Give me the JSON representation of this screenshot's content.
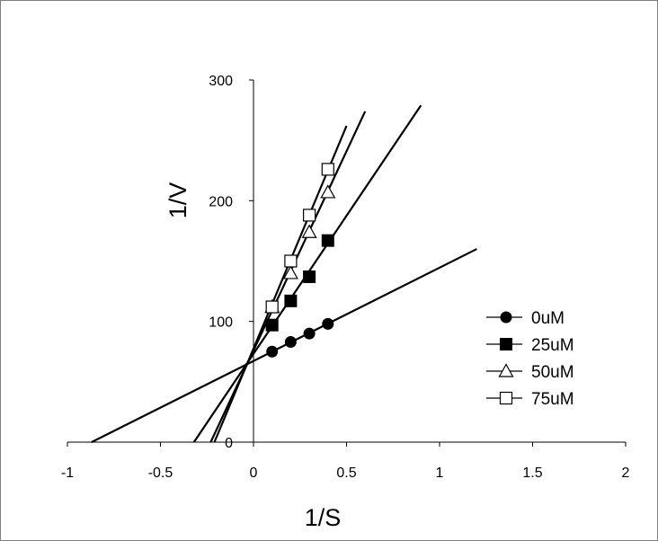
{
  "chart_data": {
    "type": "scatter",
    "title": "",
    "xlabel": "1/S",
    "ylabel": "1/V",
    "xlim": [
      -1,
      2
    ],
    "ylim": [
      0,
      300
    ],
    "xticks": [
      "-1",
      "-0.5",
      "0",
      "0.5",
      "1",
      "1.5",
      "2"
    ],
    "xtick_values": [
      -1,
      -0.5,
      0,
      0.5,
      1,
      1.5,
      2
    ],
    "yticks": [
      "0",
      "100",
      "200",
      "300"
    ],
    "ytick_values": [
      0,
      100,
      200,
      300
    ],
    "grid": false,
    "legend_position": "right",
    "series": [
      {
        "name": "0uM",
        "marker": "filled-circle",
        "x": [
          0.1,
          0.2,
          0.3,
          0.4
        ],
        "y": [
          75,
          83,
          90,
          98
        ],
        "trendline": {
          "x": [
            -0.87,
            1.2
          ],
          "y": [
            0,
            160
          ]
        }
      },
      {
        "name": "25uM",
        "marker": "filled-square",
        "x": [
          0.1,
          0.2,
          0.3,
          0.4
        ],
        "y": [
          97,
          117,
          137,
          167
        ],
        "trendline": {
          "x": [
            -0.32,
            0.9
          ],
          "y": [
            0,
            279
          ]
        }
      },
      {
        "name": "50uM",
        "marker": "open-triangle",
        "x": [
          0.1,
          0.2,
          0.3,
          0.4
        ],
        "y": [
          112,
          140,
          174,
          207
        ],
        "trendline": {
          "x": [
            -0.23,
            0.6
          ],
          "y": [
            0,
            274
          ]
        }
      },
      {
        "name": "75uM",
        "marker": "open-square",
        "x": [
          0.1,
          0.2,
          0.3,
          0.4
        ],
        "y": [
          112,
          150,
          188,
          226
        ],
        "trendline": {
          "x": [
            -0.21,
            0.5
          ],
          "y": [
            0,
            262
          ]
        }
      }
    ]
  }
}
